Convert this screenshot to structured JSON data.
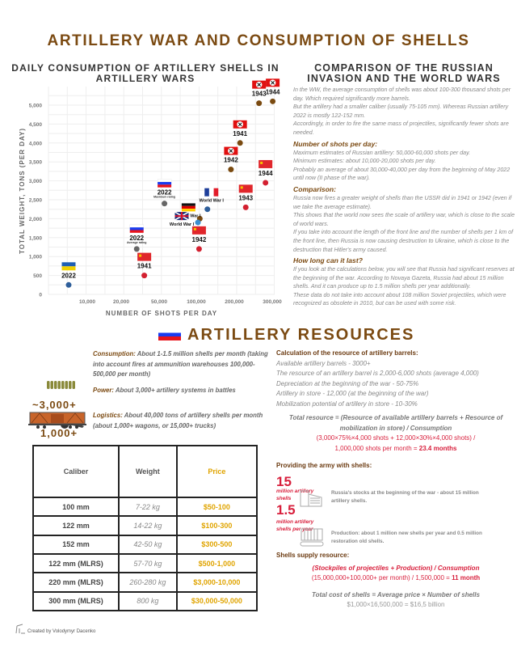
{
  "header": {
    "title": "ARTILLERY WAR AND CONSUMPTION OF SHELLS"
  },
  "chart_data": {
    "type": "scatter",
    "title": "DAILY CONSUMPTION OF ARTILLERY SHELLS IN ARTILLERY WARS",
    "xlabel": "NUMBER OF SHOTS PER DAY",
    "ylabel": "TOTAL WEIGHT, TONS (PER DAY)",
    "x_scale": "non-linear (categorical ticks)",
    "x_ticks": [
      "10,000",
      "20,000",
      "50,000",
      "100,000",
      "200,000",
      "300,000"
    ],
    "y_ticks": [
      "0",
      "500",
      "1,000",
      "1,500",
      "2,000",
      "2,500",
      "3,000",
      "3,500",
      "4,000",
      "4,500",
      "5,000"
    ],
    "ylim": [
      0,
      5000
    ],
    "grid": true,
    "points": [
      {
        "label": "2022",
        "flag": "ukraine",
        "x": 5000,
        "y": 250,
        "color": "#2e5e9a"
      },
      {
        "label": "1941",
        "flag": "ussr",
        "x": 37000,
        "y": 500,
        "color": "#d32030"
      },
      {
        "label": "2022",
        "note": "Average rating",
        "flag": "russia",
        "x": 31000,
        "y": 1200,
        "color": "#666666"
      },
      {
        "label": "2022",
        "note": "Maximum rating",
        "flag": "russia",
        "x": 55000,
        "y": 2400,
        "color": "#666666"
      },
      {
        "label": "World War I",
        "flag": "germany",
        "x": 105000,
        "y": 2000,
        "color": "#7a4a10"
      },
      {
        "label": "World War I",
        "flag": "uk",
        "x": 100000,
        "y": 1900,
        "color": "#3a8fd0"
      },
      {
        "label": "World War I",
        "flag": "france",
        "x": 125000,
        "y": 2250,
        "color": "#2e5e9a"
      },
      {
        "label": "1942",
        "flag": "ussr",
        "x": 103000,
        "y": 1200,
        "color": "#d32030"
      },
      {
        "label": "1943",
        "flag": "ussr",
        "x": 226000,
        "y": 2300,
        "color": "#d32030"
      },
      {
        "label": "1944",
        "flag": "ussr",
        "x": 278000,
        "y": 2950,
        "color": "#d32030"
      },
      {
        "label": "1942",
        "flag": "nazi",
        "x": 187000,
        "y": 3300,
        "color": "#7a4a10"
      },
      {
        "label": "1941",
        "flag": "nazi",
        "x": 211000,
        "y": 4000,
        "color": "#7a4a10"
      },
      {
        "label": "1943",
        "flag": "nazi",
        "x": 261000,
        "y": 5050,
        "color": "#7a4a10"
      },
      {
        "label": "1944",
        "flag": "nazi",
        "x": 297000,
        "y": 5100,
        "color": "#7a4a10"
      }
    ]
  },
  "comparison": {
    "title": "COMPARISON OF THE RUSSIAN INVASION AND THE WORLD WARS",
    "intro": [
      "In the WW, the average consumption of shells was about 100-300 thousand shots per day. Which required significantly more barrels.",
      "But the artillery had a smaller caliber (usually 75-105 mm). Whereas Russian artillery 2022 is mostly 122-152 mm.",
      "Accordingly, in order to fire the same mass of projectiles, significantly fewer shots are needed."
    ],
    "shots_heading": "Number of shots per day:",
    "shots": [
      "Maximum estimates of Russian artillery: 50,000-60,000 shots per day.",
      "Minimum estimates: about 10,000-20,000 shots per day.",
      "Probably an average of about 30,000-40,000 per day from the beginning of May 2022 until now (II phase of the war)."
    ],
    "comparison_heading": "Comparison:",
    "comparison": [
      "Russia now fires a greater weight of shells than the USSR did in 1941 or 1942 (even if we take the average estimate).",
      "This shows that the world now sees the scale of artillery war, which is close to the scale of world wars.",
      "If you take into account the length of the front line and the number of shells per 1 km of the front line, then Russia is now causing destruction to Ukraine, which is close to the destruction that Hitler's army caused."
    ],
    "last_heading": "How long can it last?",
    "last": [
      "If you look at the calculations below, you will see that Russia had significant reserves at the beginning of the war. According to Novaya Gazeta, Russia had about 15 million shells. And it can produce up to 1.5 million shells per year additionally.",
      "These data do not take into account about 108 million Soviet projectiles, which were recognized as obsolete in 2010, but can be used with some risk."
    ]
  },
  "resources": {
    "title": "ARTILLERY RESOURCES",
    "systems_count": "~3,000+",
    "wagons_count": "1,000+",
    "consumption_key": "Consumption:",
    "consumption": "About 1-1.5 million shells per month (taking into account fires at ammunition warehouses 100,000-500,000 per month)",
    "power_key": "Power:",
    "power": "About 3,000+ artillery systems in battles",
    "logistics_key": "Logistics:",
    "logistics": "About 40,000 tons of artillery shells per month (about 1,000+ wagons, or 15,000+ trucks)"
  },
  "table": {
    "headers": [
      "Caliber",
      "Weight",
      "Price"
    ],
    "rows": [
      [
        "100 mm",
        "7-22 kg",
        "$50-100"
      ],
      [
        "122 mm",
        "14-22 kg",
        "$100-300"
      ],
      [
        "152 mm",
        "42-50 kg",
        "$300-500"
      ],
      [
        "122 mm (MLRS)",
        "57-70 kg",
        "$500-1,000"
      ],
      [
        "220 mm (MLRS)",
        "260-280 kg",
        "$3,000-10,000"
      ],
      [
        "300 mm (MLRS)",
        "800 kg",
        "$30,000-50,000"
      ]
    ]
  },
  "barrels": {
    "heading": "Calculation of the resource of artillery barrels:",
    "lines": [
      "Available artillery barrels - 3000+",
      "The resource of an artillery barrel is 2,000-6,000 shots (average 4,000)",
      "Depreciation at the beginning of the war - 50-75%",
      "Artillery in store - 12,000 (at the beginning of the war)",
      "Mobilization potential of artillery in store - 10-30%"
    ],
    "formula": "Total resource = (Resource of available artillery barrels + Resource of mobilization in store) / Consumption",
    "calc1": "(3,000×75%×4,000 shots + 12,000×30%×4,000 shots) /",
    "calc2": "1,000,000 shots per month = ",
    "result": "23.4 months"
  },
  "providing": {
    "heading": "Providing the army with shells:",
    "stock_num": "15",
    "stock_unit": "million artillery shells",
    "stock_text": "Russia's stocks at the beginning of the war - about 15 million artillery shells.",
    "prod_num": "1.5",
    "prod_unit": "million artillery shells per year",
    "prod_text": "Production: about 1 million new shells per year and 0.5 million restoration old shells."
  },
  "supply": {
    "heading": "Shells supply resource:",
    "formula": "(Stockpiles of projectiles + Production) / Consumption",
    "calc": "(15,000,000+100,000+ per month) / 1,500,000 = ",
    "result": "11 month",
    "cost_formula": "Total cost of shells = Average price × Number of shells",
    "cost_calc": "$1,000×16,500,000 = $16,5 billion"
  },
  "footer": {
    "credit": "Created by Volodymyr Dacenko"
  }
}
